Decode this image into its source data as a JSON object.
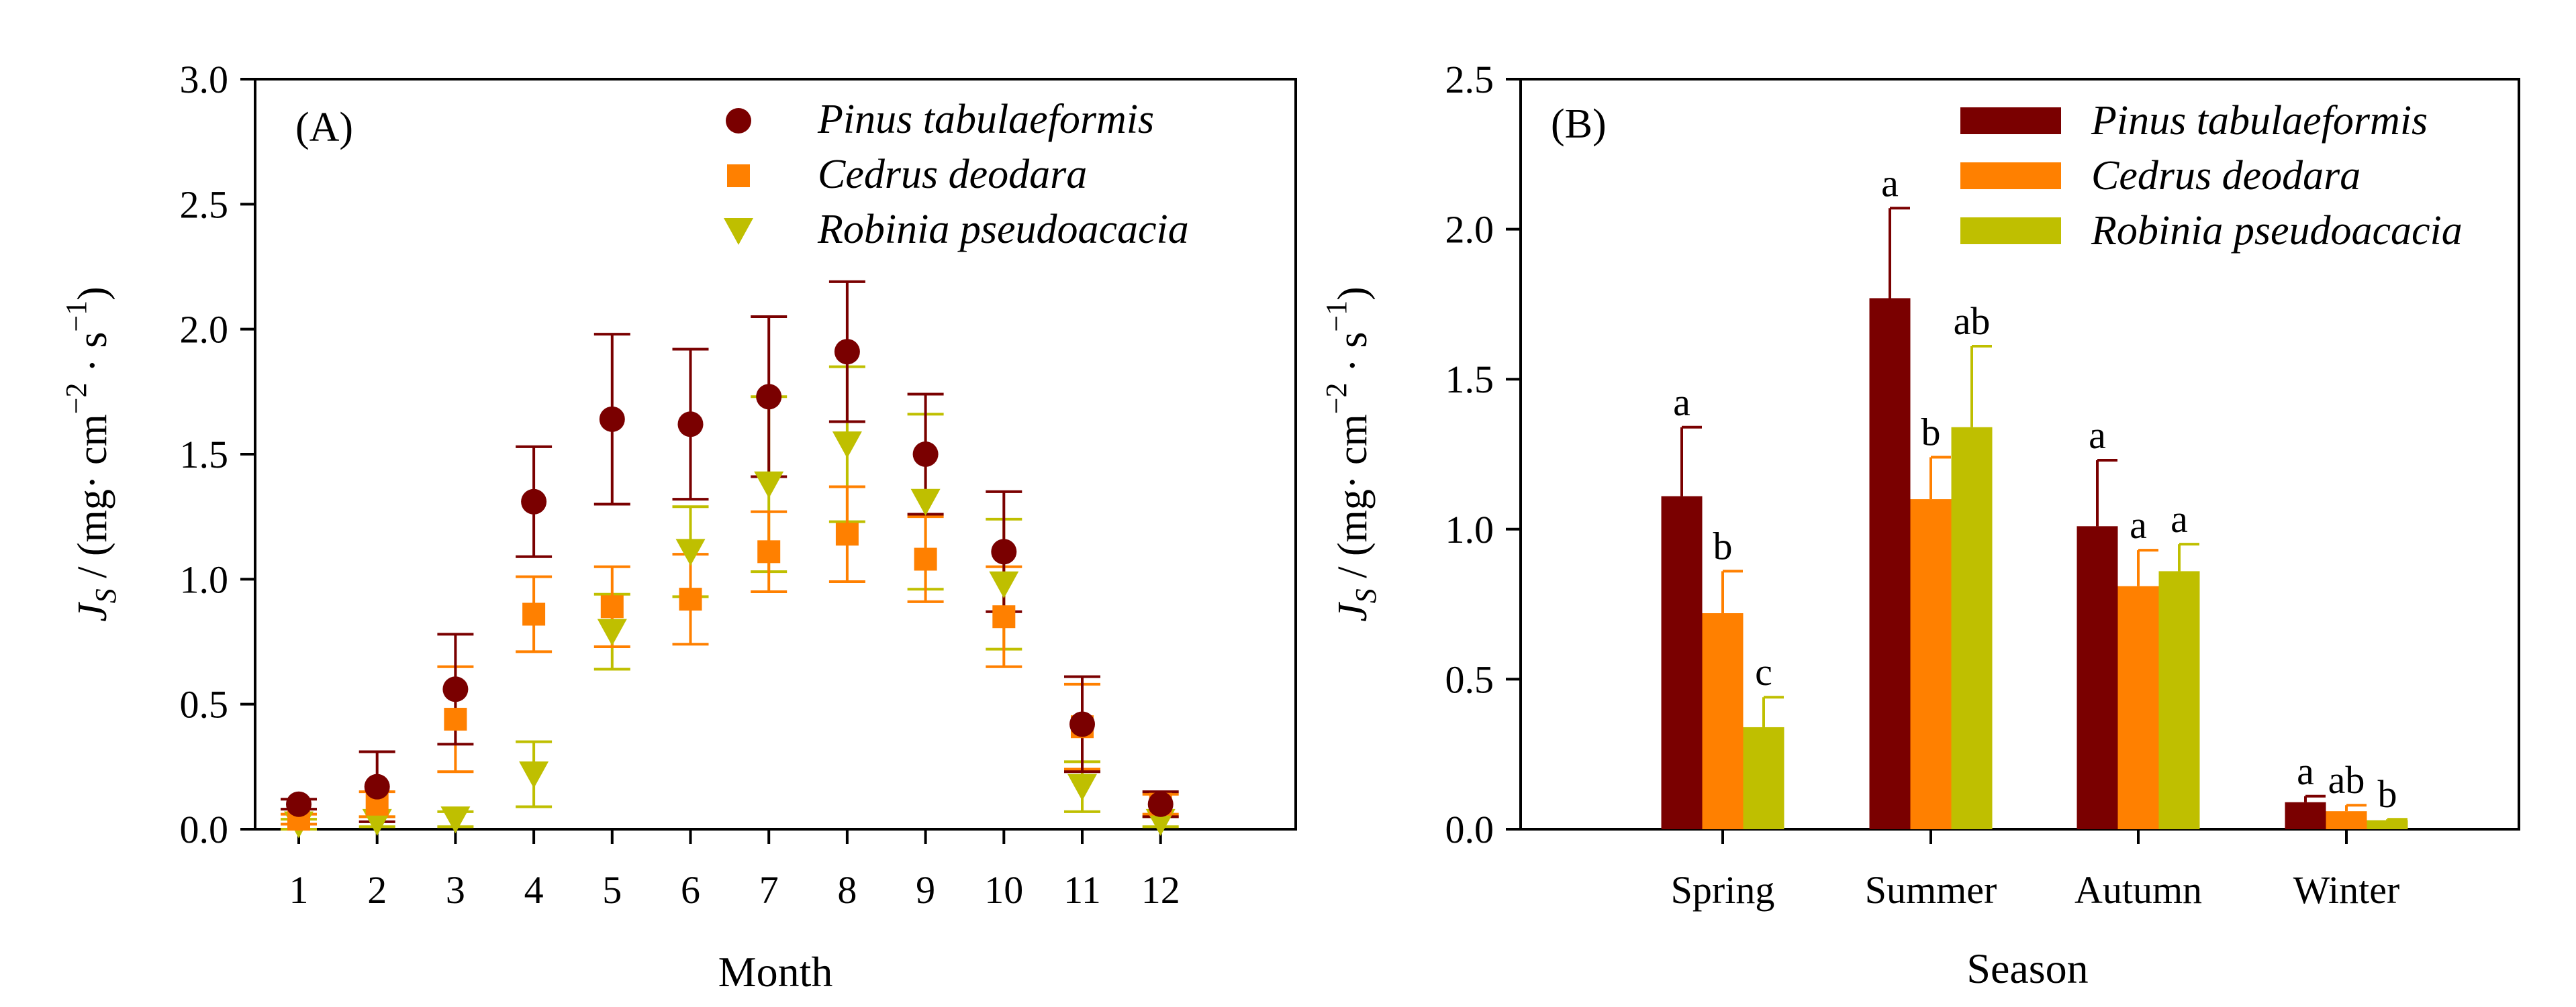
{
  "colors": {
    "pinus": "#7a0000",
    "cedrus": "#ff8000",
    "robinia": "#bfbf00"
  },
  "y_axis_label": {
    "symbol": "J",
    "subscript": "S",
    "unit_open": "/ (mg· cm",
    "exp1": "−2",
    "unit_mid": "· s",
    "exp2": "−1",
    "unit_close": ")"
  },
  "chart_data": [
    {
      "panel": "(A)",
      "type": "scatter",
      "xlabel": "Month",
      "ylim": [
        0,
        3.0
      ],
      "yticks": [
        "0.0",
        "0.5",
        "1.0",
        "1.5",
        "2.0",
        "2.5",
        "3.0"
      ],
      "xticks": [
        "1",
        "2",
        "3",
        "4",
        "5",
        "6",
        "7",
        "8",
        "9",
        "10",
        "11",
        "12"
      ],
      "legend_position": "top-right",
      "series": [
        {
          "name": "Pinus tabulaeformis",
          "marker": "circle",
          "values": [
            0.1,
            0.17,
            0.56,
            1.31,
            1.64,
            1.62,
            1.73,
            1.91,
            1.5,
            1.11,
            0.42,
            0.1
          ],
          "errors": [
            0.02,
            0.14,
            0.22,
            0.22,
            0.34,
            0.3,
            0.32,
            0.28,
            0.24,
            0.24,
            0.19,
            0.05
          ]
        },
        {
          "name": "Cedrus deodara",
          "marker": "square",
          "values": [
            0.04,
            0.1,
            0.44,
            0.86,
            0.89,
            0.92,
            1.11,
            1.18,
            1.08,
            0.85,
            0.41,
            0.1
          ],
          "errors": [
            0.02,
            0.05,
            0.21,
            0.15,
            0.16,
            0.18,
            0.16,
            0.19,
            0.17,
            0.2,
            0.17,
            0.04
          ]
        },
        {
          "name": "Robinia pseudoacacia",
          "marker": "triangle-down",
          "values": [
            0.02,
            0.03,
            0.04,
            0.22,
            0.79,
            1.11,
            1.38,
            1.54,
            1.31,
            0.98,
            0.17,
            0.03
          ],
          "errors": [
            0.02,
            0.02,
            0.03,
            0.13,
            0.15,
            0.18,
            0.35,
            0.31,
            0.35,
            0.26,
            0.1,
            0.02
          ]
        }
      ]
    },
    {
      "panel": "(B)",
      "type": "bar",
      "xlabel": "Season",
      "ylim": [
        0,
        2.5
      ],
      "yticks": [
        "0.0",
        "0.5",
        "1.0",
        "1.5",
        "2.0",
        "2.5"
      ],
      "categories": [
        "Spring",
        "Summer",
        "Autumn",
        "Winter"
      ],
      "legend_position": "top-right",
      "series": [
        {
          "name": "Pinus tabulaeformis",
          "values": [
            1.11,
            1.77,
            1.01,
            0.09
          ],
          "errors": [
            0.23,
            0.3,
            0.22,
            0.02
          ],
          "letters": [
            "a",
            "a",
            "a",
            "a"
          ]
        },
        {
          "name": "Cedrus deodara",
          "values": [
            0.72,
            1.1,
            0.81,
            0.06
          ],
          "errors": [
            0.14,
            0.14,
            0.12,
            0.02
          ],
          "letters": [
            "b",
            "b",
            "a",
            "ab"
          ]
        },
        {
          "name": "Robinia pseudoacacia",
          "values": [
            0.34,
            1.34,
            0.86,
            0.03
          ],
          "errors": [
            0.1,
            0.27,
            0.09,
            0.003
          ],
          "letters": [
            "c",
            "ab",
            "a",
            "b"
          ]
        }
      ]
    }
  ]
}
